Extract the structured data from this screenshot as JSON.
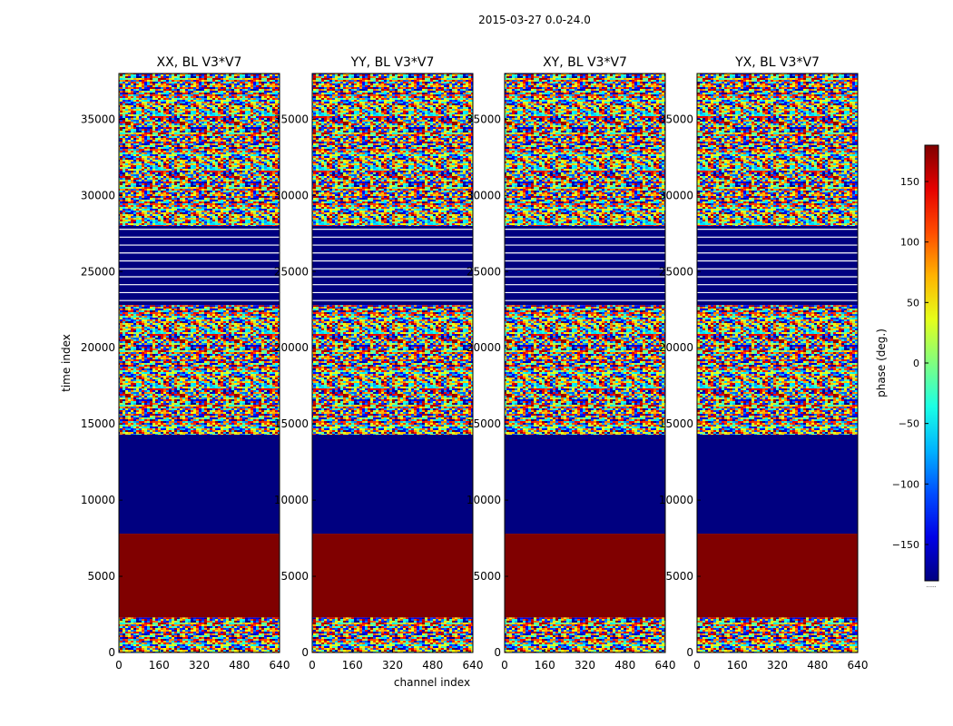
{
  "figure": {
    "suptitle": "2015-03-27 0.0-24.0",
    "ylabel": "time index",
    "xlabel": "channel index",
    "colorbar_label": "phase (deg.)",
    "colorbar_footer": "......"
  },
  "chart_data": {
    "type": "heatmap",
    "colormap": "jet",
    "panels": [
      {
        "title": "XX, BL V3*V7"
      },
      {
        "title": "YY, BL V3*V7"
      },
      {
        "title": "XY, BL V3*V7"
      },
      {
        "title": "YX, BL V3*V7"
      }
    ],
    "x_range": [
      0,
      640
    ],
    "y_range": [
      0,
      38000
    ],
    "x_ticks": [
      "0",
      "160",
      "320",
      "480",
      "640"
    ],
    "y_ticks": [
      "0",
      "5000",
      "10000",
      "15000",
      "20000",
      "25000",
      "30000",
      "35000"
    ],
    "x_tick_values": [
      0,
      160,
      320,
      480,
      640
    ],
    "y_tick_values": [
      0,
      5000,
      10000,
      15000,
      20000,
      25000,
      30000,
      35000
    ],
    "colorbar": {
      "range": [
        -180,
        180
      ],
      "tick_values": [
        150,
        100,
        50,
        0,
        -50,
        -100,
        -150
      ],
      "tick_labels": [
        "150",
        "100",
        "50",
        "0",
        "−50",
        "−100",
        "−150"
      ]
    },
    "time_bands": [
      {
        "from": 0,
        "to": 2300,
        "pattern": "noise",
        "phase": null
      },
      {
        "from": 2300,
        "to": 7800,
        "pattern": "solid",
        "phase": 180
      },
      {
        "from": 7800,
        "to": 14300,
        "pattern": "solid",
        "phase": -180
      },
      {
        "from": 14300,
        "to": 22800,
        "pattern": "noise",
        "phase": null
      },
      {
        "from": 22800,
        "to": 28000,
        "pattern": "striped",
        "phase": -180
      },
      {
        "from": 28000,
        "to": 38000,
        "pattern": "noise",
        "phase": null
      }
    ],
    "colors": {
      "solid_high": "#800000",
      "solid_low": "#00007f",
      "axis": "#000000",
      "background": "#ffffff"
    }
  }
}
